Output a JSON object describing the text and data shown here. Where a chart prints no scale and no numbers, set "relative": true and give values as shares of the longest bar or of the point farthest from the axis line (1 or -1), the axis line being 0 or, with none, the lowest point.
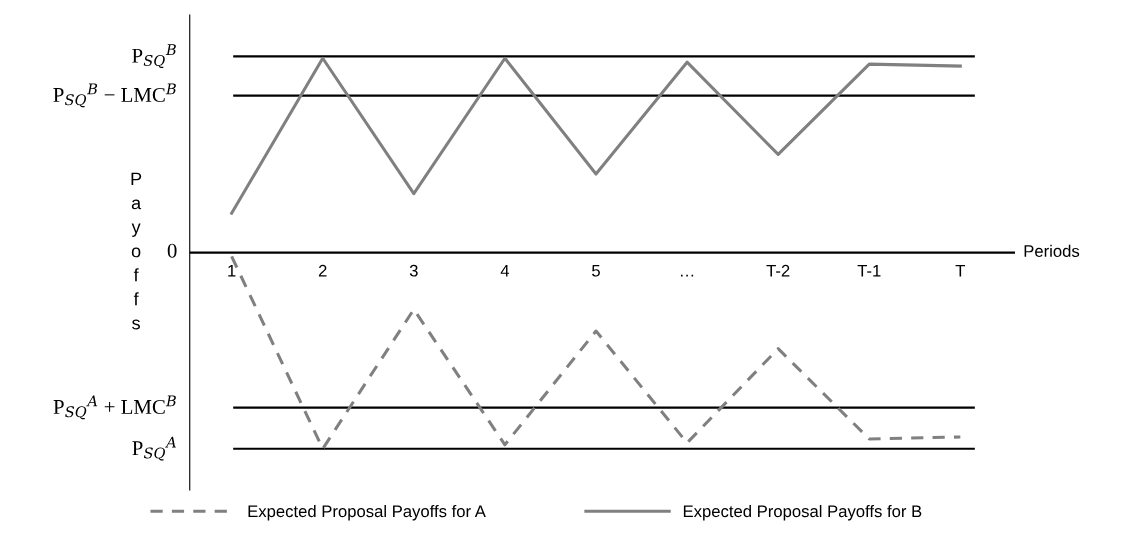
{
  "chart_data": {
    "type": "line",
    "relative": true,
    "xlabel": "Periods",
    "ylabel": "Payoffs",
    "categories": [
      "1",
      "2",
      "3",
      "4",
      "5",
      "…",
      "T-2",
      "T-1",
      "T"
    ],
    "series": [
      {
        "name": "Expected Proposal Payoffs for A",
        "color": "#808080",
        "line_style": "dashed",
        "values": [
          -0.02,
          -1.0,
          -0.29,
          -0.98,
          -0.4,
          -0.97,
          -0.49,
          -0.95,
          -0.94
        ]
      },
      {
        "name": "Expected Proposal Payoffs for B",
        "color": "#808080",
        "line_style": "solid",
        "values": [
          0.2,
          0.99,
          0.3,
          0.99,
          0.4,
          0.97,
          0.5,
          0.96,
          0.95
        ]
      }
    ],
    "ref_lines": [
      {
        "axis": "y",
        "value": 0,
        "label": "0",
        "color": "#000000"
      },
      {
        "axis": "y",
        "value": 1.0,
        "label": "P$_{SQ}$$^{B}$",
        "color": "#000000"
      },
      {
        "axis": "y",
        "value": 0.8,
        "label": "P$_{SQ}$$^{B}$ − LMC$^{B}$",
        "color": "#000000"
      },
      {
        "axis": "y",
        "value": -0.79,
        "label": "P$_{SQ}$$^{A}$ + LMC$^{B}$",
        "color": "#000000"
      },
      {
        "axis": "y",
        "value": -1.0,
        "label": "P$_{SQ}$$^{A}$",
        "color": "#000000"
      }
    ],
    "legend": "bottom",
    "marker": "none"
  }
}
